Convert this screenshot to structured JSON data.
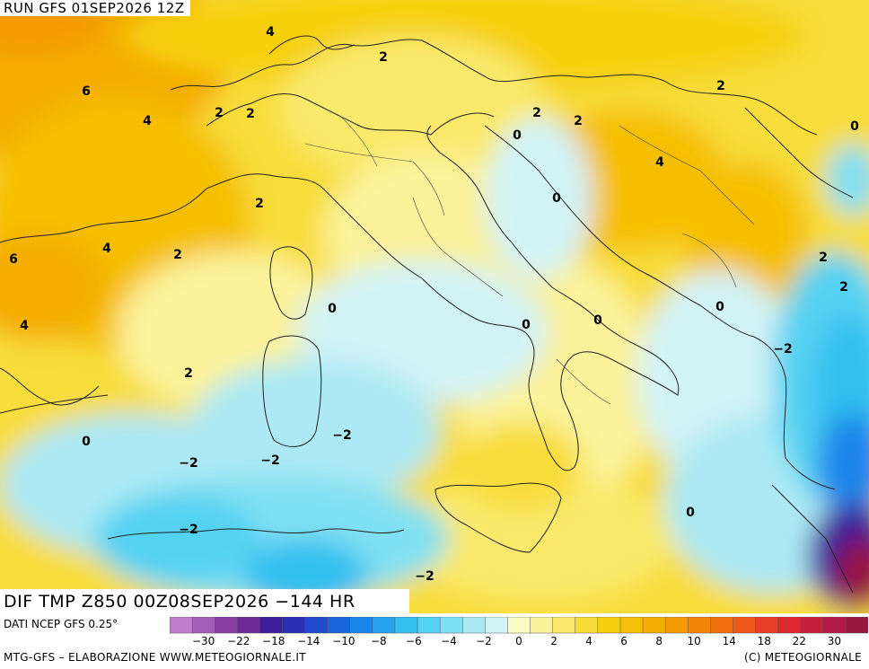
{
  "header": {
    "run": "RUN GFS 01SEP2026 12Z"
  },
  "title": {
    "text": "DIF TMP Z850 00Z08SEP2026 −144 HR"
  },
  "source": {
    "text": "DATI NCEP GFS 0.25°"
  },
  "footer": {
    "left": "MTG-GFS – ELABORAZIONE WWW.METEOGIORNALE.IT",
    "right": "(C) METEOGIORNALE"
  },
  "colorbar": {
    "colors": [
      "#c27ccd",
      "#a55cb8",
      "#8a3fa5",
      "#6e2a94",
      "#3c1f9a",
      "#2a2fb8",
      "#1f4ccc",
      "#1a66dd",
      "#1a86ea",
      "#26a4ee",
      "#33c0f0",
      "#55d2f2",
      "#80e0f3",
      "#ace9f4",
      "#d2f3f6",
      "#fbfbc8",
      "#fbf29a",
      "#fae96a",
      "#f8dd3a",
      "#f6d00f",
      "#f5bf06",
      "#f4ad05",
      "#f49a05",
      "#f48705",
      "#f27010",
      "#ee571a",
      "#e63f25",
      "#dc2a30",
      "#c81e3c",
      "#b01a44",
      "#98173f"
    ],
    "labels": [
      "−30",
      "−22",
      "−18",
      "−14",
      "−10",
      "−8",
      "−6",
      "−4",
      "−2",
      "0",
      "2",
      "4",
      "6",
      "8",
      "10",
      "14",
      "18",
      "22",
      "30"
    ]
  },
  "contour_labels": [
    "4",
    "6",
    "4",
    "2",
    "2",
    "2",
    "2",
    "2",
    "2",
    "4",
    "2",
    "0",
    "0",
    "4",
    "0",
    "6",
    "4",
    "2",
    "2",
    "2",
    "0",
    "0",
    "0",
    "0",
    "−2",
    "2",
    "−2",
    "−2",
    "−2",
    "0",
    "−2",
    "0",
    "−2"
  ]
}
